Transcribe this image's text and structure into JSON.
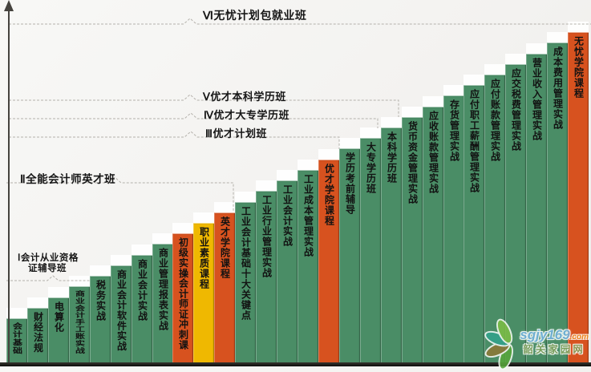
{
  "watermark": {
    "site": "sgjy169",
    "tld": ".com",
    "name": "韶关家园网"
  },
  "chart_data": {
    "type": "bar",
    "title": "",
    "description": "Ascending staircase of accounting course modules grouped into six class levels",
    "bars": [
      {
        "step": 1,
        "label": "会计基础",
        "color": "green"
      },
      {
        "step": 2,
        "label": "财经法规",
        "color": "green"
      },
      {
        "step": 3,
        "label": "电算化",
        "color": "green"
      },
      {
        "step": 4,
        "label": "商业会计手工账实战",
        "color": "green"
      },
      {
        "step": 5,
        "label": "税务实战",
        "color": "green"
      },
      {
        "step": 6,
        "label": "商业会计软件实战",
        "color": "green"
      },
      {
        "step": 7,
        "label": "商业会计实战",
        "color": "green"
      },
      {
        "step": 8,
        "label": "商业管理报表实战",
        "color": "green"
      },
      {
        "step": 9,
        "label": "初级实操会计师证冲刺课",
        "color": "orange"
      },
      {
        "step": 10,
        "label": "职业素质课程",
        "color": "yellow"
      },
      {
        "step": 11,
        "label": "英才学院课程",
        "color": "orange"
      },
      {
        "step": 12,
        "label": "工业会计基础十大关键点",
        "color": "green"
      },
      {
        "step": 13,
        "label": "工业行业管理实战",
        "color": "green"
      },
      {
        "step": 14,
        "label": "工业会计实战",
        "color": "green"
      },
      {
        "step": 15,
        "label": "工业成本管理实战",
        "color": "green"
      },
      {
        "step": 16,
        "label": "优才学院课程",
        "color": "orange"
      },
      {
        "step": 17,
        "label": "学历考前辅导",
        "color": "green"
      },
      {
        "step": 18,
        "label": "大专学历班",
        "color": "green"
      },
      {
        "step": 19,
        "label": "本科学历班",
        "color": "green"
      },
      {
        "step": 20,
        "label": "货币资金管理实战",
        "color": "green"
      },
      {
        "step": 21,
        "label": "应收账款管理实战",
        "color": "green"
      },
      {
        "step": 22,
        "label": "存货管理实战",
        "color": "green"
      },
      {
        "step": 23,
        "label": "应付职工薪酬管理实战",
        "color": "green"
      },
      {
        "step": 24,
        "label": "应付账款管理实战",
        "color": "green"
      },
      {
        "step": 25,
        "label": "应交税费管理实战",
        "color": "green"
      },
      {
        "step": 26,
        "label": "营业收入管理实战",
        "color": "green"
      },
      {
        "step": 27,
        "label": "成本费用管理实战",
        "color": "green"
      },
      {
        "step": 28,
        "label": "无忧学院课程",
        "color": "orange"
      }
    ],
    "levels": [
      {
        "numeral": "Ⅵ",
        "name": "无忧计划包就业班",
        "text": "Ⅵ无忧计划包就业班",
        "covers_through_bar": 28
      },
      {
        "numeral": "Ⅴ",
        "name": "优才本科学历班",
        "text": "Ⅴ优才本科学历班",
        "covers_through_bar": 19
      },
      {
        "numeral": "Ⅳ",
        "name": "优才大专学历班",
        "text": "Ⅳ优才大专学历班",
        "covers_through_bar": 18
      },
      {
        "numeral": "Ⅲ",
        "name": "优才计划班",
        "text": "Ⅲ优才计划班",
        "covers_through_bar": 16
      },
      {
        "numeral": "Ⅱ",
        "name": "全能会计师英才班",
        "text": "Ⅱ全能会计师英才班",
        "covers_through_bar": 11
      },
      {
        "numeral": "Ⅰ",
        "name": "会计从业资格证辅导班",
        "text": "Ⅰ会计从业资格证辅导班",
        "lines": [
          "Ⅰ会计从业资格",
          "证辅导班"
        ],
        "covers_through_bar": 9
      }
    ],
    "colors": {
      "green": "#4a8d66",
      "orange": "#d7521f",
      "yellow": "#efb801"
    },
    "layout_hints": {
      "grid": false,
      "legend": false,
      "bars_total": 28,
      "orientation": "vertical-staircase"
    }
  }
}
